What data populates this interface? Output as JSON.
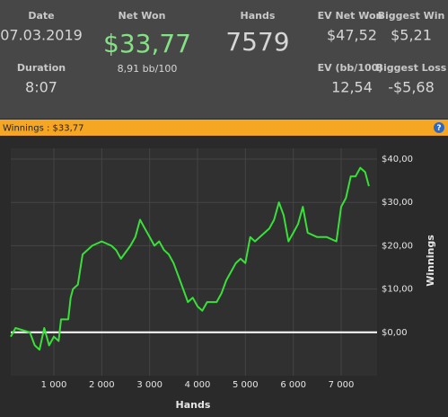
{
  "header": {
    "date": {
      "label": "Date",
      "value": "07.03.2019"
    },
    "net_won": {
      "label": "Net Won",
      "value": "$33,77",
      "sub": "8,91 bb/100"
    },
    "hands": {
      "label": "Hands",
      "value": "7579"
    },
    "ev_net_won": {
      "label": "EV Net Won",
      "value": "$47,52"
    },
    "biggest_win": {
      "label": "Biggest Win",
      "value": "$5,21"
    },
    "duration": {
      "label": "Duration",
      "value": "8:07"
    },
    "ev_bb100": {
      "label": "EV (bb/100)",
      "value": "12,54"
    },
    "biggest_loss": {
      "label": "Biggest Loss",
      "value": "-$5,68"
    }
  },
  "panel": {
    "title": "Winnings : $33,77",
    "help": "?"
  },
  "chart_data": {
    "type": "line",
    "x_label": "Hands",
    "y_label": "Winnings",
    "xlim": [
      100,
      7750
    ],
    "ylim": [
      -10,
      42.5
    ],
    "xticks": [
      {
        "value": 1000,
        "label": "1 000"
      },
      {
        "value": 2000,
        "label": "2 000"
      },
      {
        "value": 3000,
        "label": "3 000"
      },
      {
        "value": 4000,
        "label": "4 000"
      },
      {
        "value": 5000,
        "label": "5 000"
      },
      {
        "value": 6000,
        "label": "6 000"
      },
      {
        "value": 7000,
        "label": "7 000"
      }
    ],
    "yticks": [
      {
        "value": 0,
        "label": "$0,00"
      },
      {
        "value": 10,
        "label": "$10,00"
      },
      {
        "value": 20,
        "label": "$20,00"
      },
      {
        "value": 30,
        "label": "$30,00"
      },
      {
        "value": 40,
        "label": "$40,00"
      }
    ],
    "grid": true,
    "series": [
      {
        "name": "Winnings",
        "color": "#39e03a",
        "x": [
          100,
          200,
          500,
          600,
          700,
          800,
          900,
          1000,
          1100,
          1150,
          1300,
          1350,
          1400,
          1500,
          1600,
          1800,
          2000,
          2200,
          2300,
          2400,
          2600,
          2700,
          2800,
          2900,
          3000,
          3100,
          3200,
          3300,
          3400,
          3500,
          3600,
          3700,
          3800,
          3900,
          4000,
          4100,
          4200,
          4400,
          4500,
          4600,
          4800,
          4900,
          5000,
          5100,
          5200,
          5400,
          5500,
          5600,
          5700,
          5800,
          5900,
          6000,
          6100,
          6200,
          6300,
          6500,
          6700,
          6900,
          7000,
          7100,
          7200,
          7300,
          7400,
          7500,
          7579
        ],
        "values": [
          -1,
          1,
          0,
          -3,
          -4,
          1,
          -3,
          -1,
          -2,
          3,
          3,
          8,
          10,
          11,
          18,
          20,
          21,
          20,
          19,
          17,
          20,
          22,
          26,
          24,
          22,
          20,
          21,
          19,
          18,
          16,
          13,
          10,
          7,
          8,
          6,
          5,
          7,
          7,
          9,
          12,
          16,
          17,
          16,
          22,
          21,
          23,
          24,
          26,
          30,
          27,
          21,
          23,
          25,
          29,
          23,
          22,
          22,
          21,
          29,
          31,
          36,
          36,
          38,
          37,
          33.77
        ]
      }
    ]
  }
}
